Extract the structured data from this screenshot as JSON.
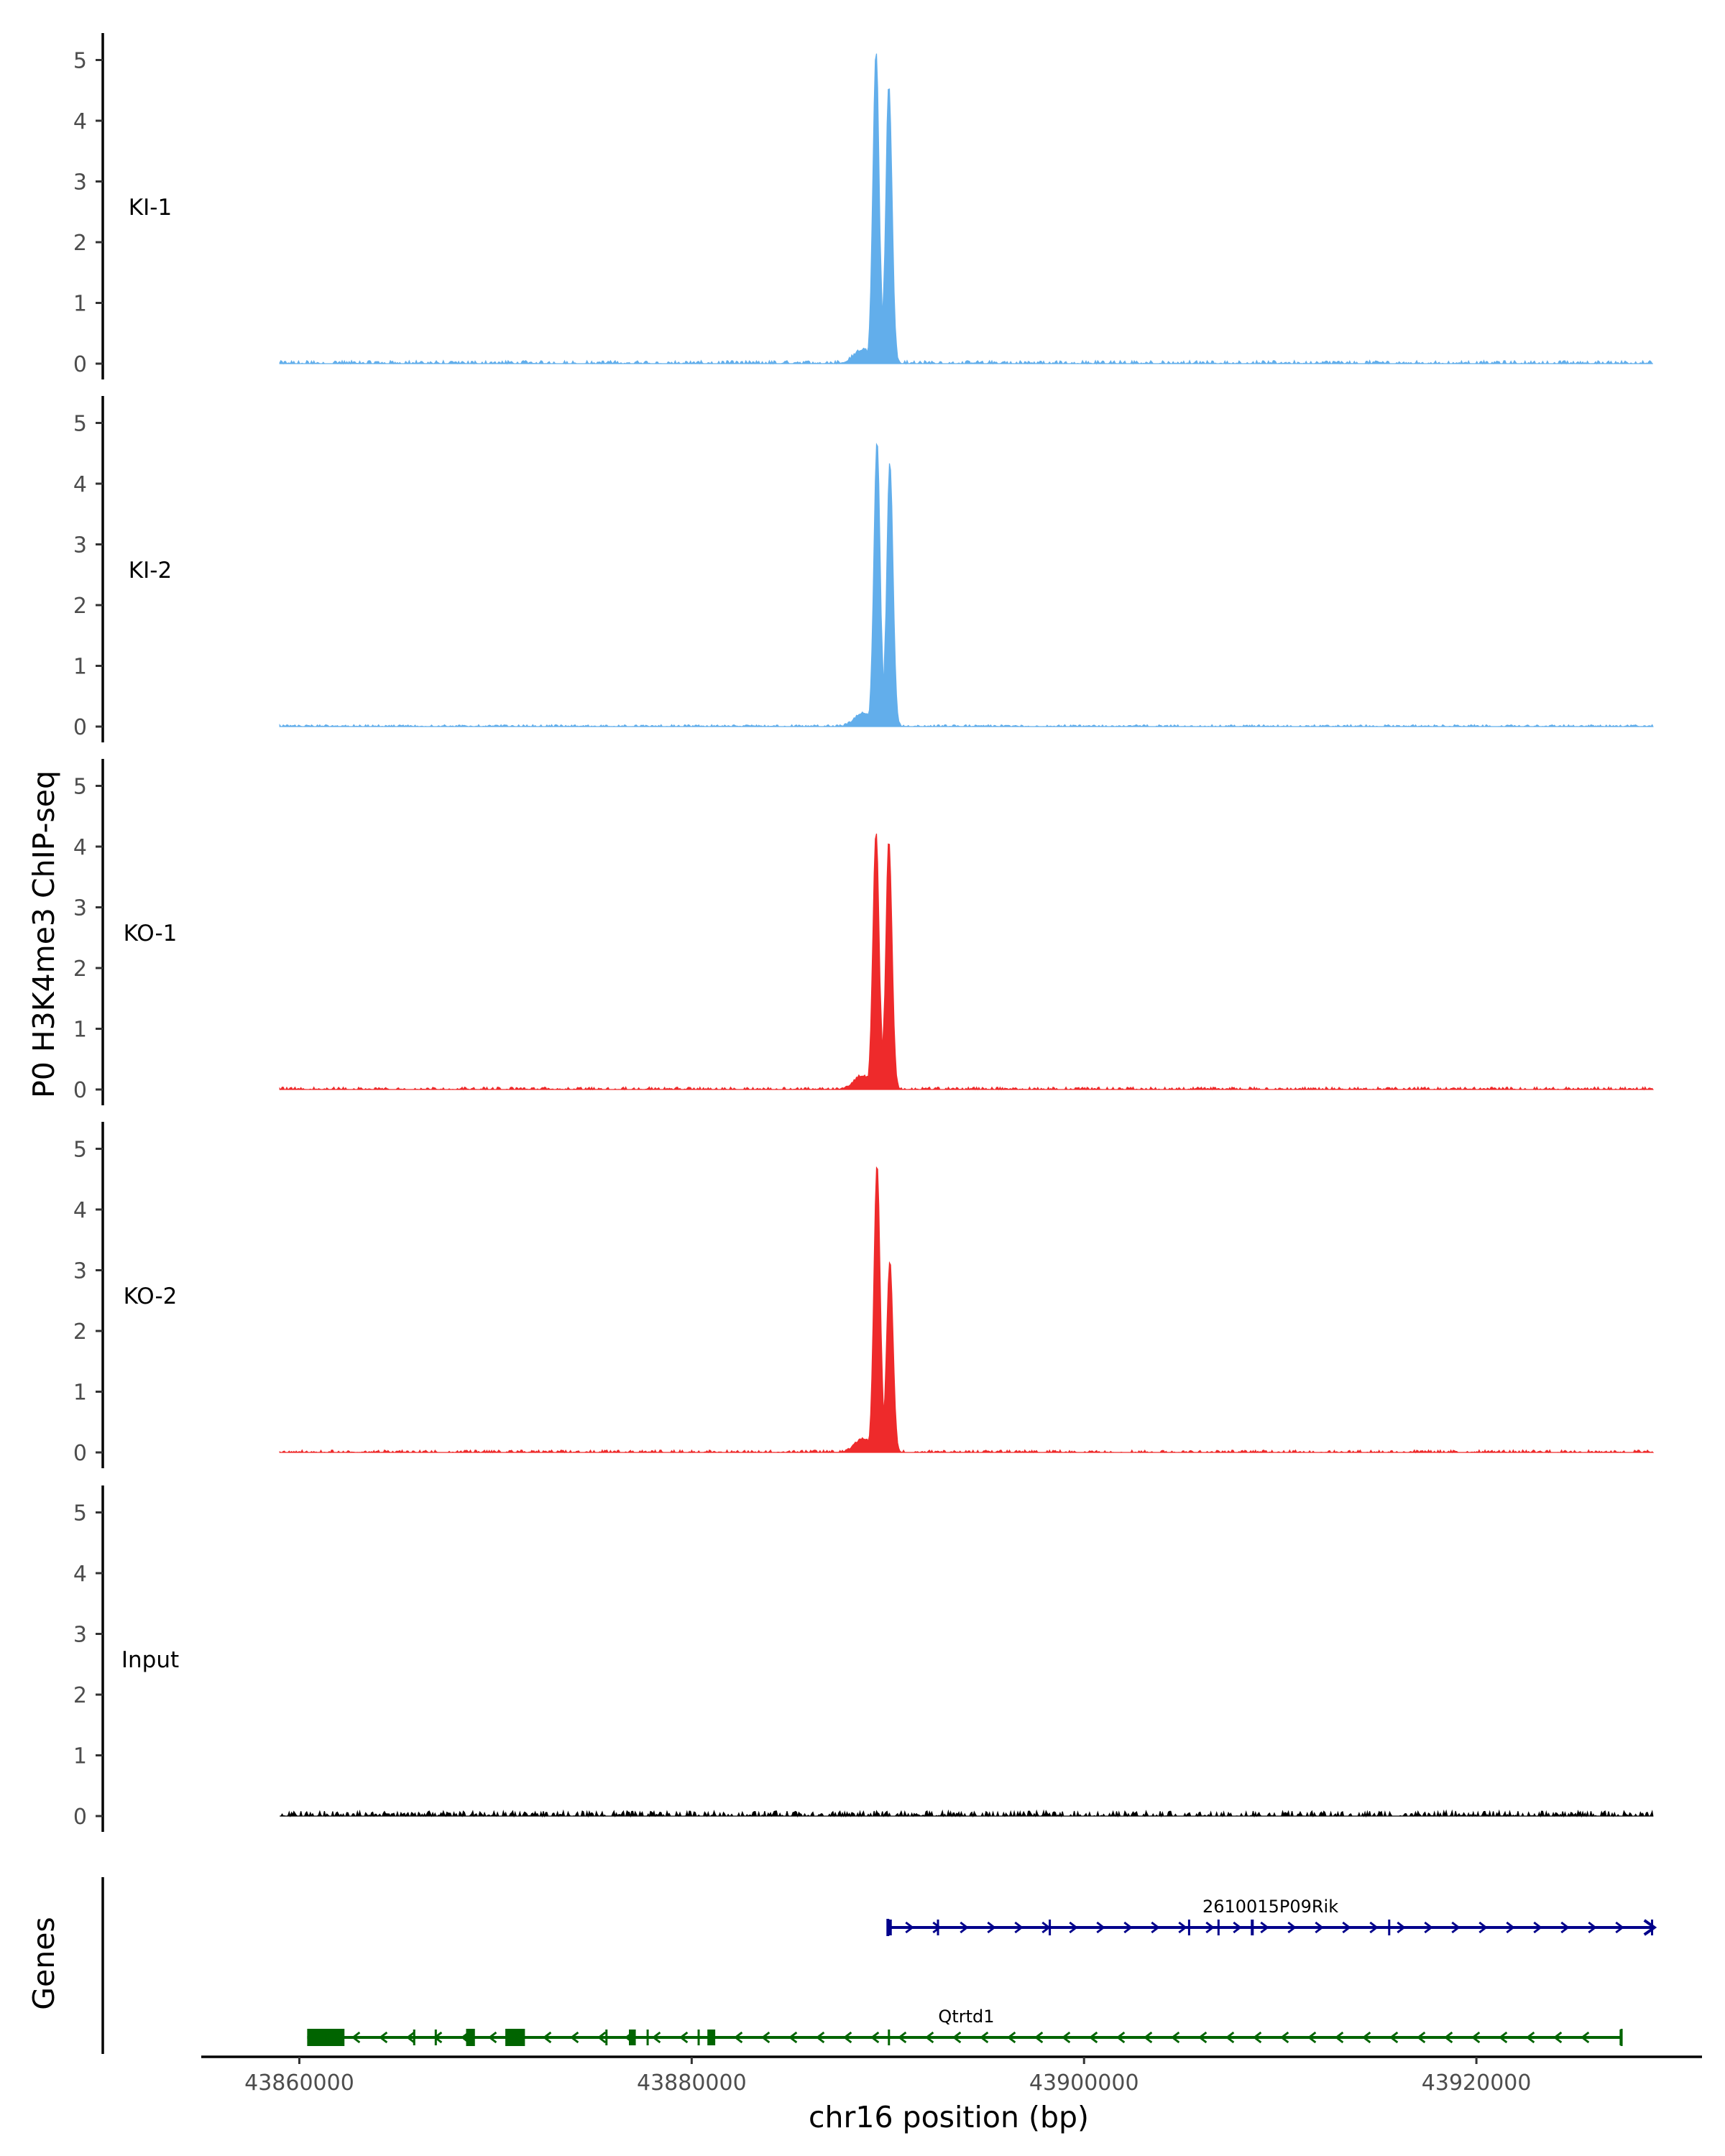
{
  "chart_data": {
    "type": "area",
    "title": "",
    "ylabel": "P0 H3K4me3 ChIP-seq",
    "genes_label": "Genes",
    "xlabel": "chr16 position (bp)",
    "xlim": [
      43855000,
      43931500
    ],
    "ylim": [
      0,
      5.4
    ],
    "x_ticks": [
      43860000,
      43880000,
      43900000,
      43920000
    ],
    "x_tick_labels": [
      "43860000",
      "43880000",
      "43900000",
      "43920000"
    ],
    "y_ticks": [
      0,
      1,
      2,
      3,
      4,
      5
    ],
    "y_tick_labels": [
      "0",
      "1",
      "2",
      "3",
      "4",
      "5"
    ],
    "signal_range": [
      43859000,
      43929000
    ],
    "tracks": [
      {
        "name": "KI-1",
        "color": "#62aeeb",
        "peak_center": 43890000,
        "peak1_pos": 43889400,
        "peak1_height": 5.15,
        "peak2_pos": 43890050,
        "peak2_height": 4.6,
        "dip": 1.5,
        "noise": 0.05
      },
      {
        "name": "KI-2",
        "color": "#62aeeb",
        "peak_center": 43890000,
        "peak1_pos": 43889450,
        "peak1_height": 4.7,
        "peak2_pos": 43890100,
        "peak2_height": 4.35,
        "dip": 1.5,
        "noise": 0.03
      },
      {
        "name": "KO-1",
        "color": "#ee2a2b",
        "peak_center": 43890000,
        "peak1_pos": 43889400,
        "peak1_height": 4.25,
        "peak2_pos": 43890050,
        "peak2_height": 4.1,
        "dip": 1.2,
        "noise": 0.04
      },
      {
        "name": "KO-2",
        "color": "#ee2a2b",
        "peak_center": 43890000,
        "peak1_pos": 43889450,
        "peak1_height": 4.75,
        "peak2_pos": 43890100,
        "peak2_height": 3.15,
        "dip": 1.8,
        "noise": 0.04
      },
      {
        "name": "Input",
        "color": "#000000",
        "peak_center": null,
        "peak1_pos": null,
        "peak1_height": 0,
        "peak2_pos": null,
        "peak2_height": 0,
        "dip": 0,
        "noise": 0.06
      }
    ],
    "genes": [
      {
        "name": "2610015P09Rik",
        "strand": "+",
        "color": "#00008b",
        "start": 43890000,
        "end": 43929000,
        "label_pos": 43909500,
        "exons": [
          [
            43890000,
            43890200
          ],
          [
            43892500,
            43892550
          ],
          [
            43898200,
            43898300
          ],
          [
            43905300,
            43905380
          ],
          [
            43906800,
            43906900
          ],
          [
            43908500,
            43908650
          ],
          [
            43915500,
            43915600
          ],
          [
            43928900,
            43929000
          ]
        ]
      },
      {
        "name": "Qtrtd1",
        "strand": "-",
        "color": "#006400",
        "start": 43860400,
        "end": 43927400,
        "label_pos": 43894000,
        "exons": [
          [
            43860400,
            43862300
          ],
          [
            43865800,
            43865900
          ],
          [
            43866900,
            43867000
          ],
          [
            43868500,
            43868950
          ],
          [
            43870500,
            43871500
          ],
          [
            43875600,
            43875650
          ],
          [
            43876800,
            43877150
          ],
          [
            43877700,
            43877750
          ],
          [
            43880300,
            43880350
          ],
          [
            43880800,
            43881200
          ],
          [
            43890000,
            43890100
          ],
          [
            43927300,
            43927400
          ]
        ]
      }
    ]
  }
}
